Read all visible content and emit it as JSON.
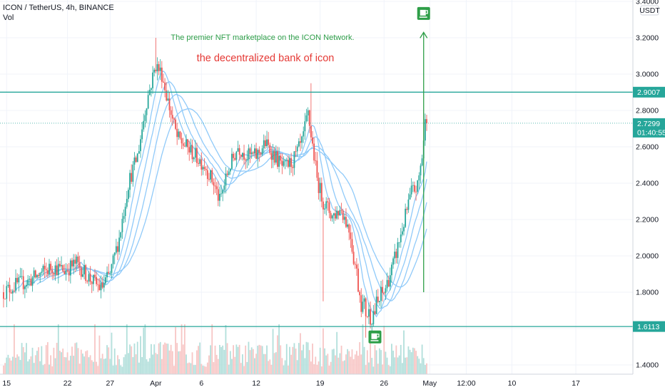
{
  "legend": {
    "symbol_line": "ICON / TetherUS, 4h, BINANCE",
    "volume_label": "Vol"
  },
  "currency_label": "USDT",
  "colors": {
    "up": "#26a69a",
    "down": "#ef5350",
    "volume_up": "#b2dfdb",
    "volume_down": "#f7c6c5",
    "ma": "#90caf9",
    "level_line": "#26a69a",
    "annotation_green": "#2e9e48",
    "annotation_red": "#e53935",
    "axis_text": "#131722"
  },
  "icons": [
    "coffee-cup-icon"
  ],
  "chart_data": {
    "type": "candlestick",
    "title": "",
    "xlabel": "",
    "ylabel": "",
    "ylim": [
      1.37,
      3.4
    ],
    "y_ticks": [
      "3.4000",
      "3.2000",
      "3.0000",
      "2.8000",
      "2.6000",
      "2.4000",
      "2.2000",
      "2.0000",
      "1.8000",
      "1.6000",
      "1.4000"
    ],
    "x_ticks": [
      {
        "label": "15",
        "bar": 2
      },
      {
        "label": "22",
        "bar": 42
      },
      {
        "label": "27",
        "bar": 70
      },
      {
        "label": "Apr",
        "bar": 100
      },
      {
        "label": "6",
        "bar": 130
      },
      {
        "label": "12",
        "bar": 166
      },
      {
        "label": "19",
        "bar": 208
      },
      {
        "label": "26",
        "bar": 250
      },
      {
        "label": "May",
        "bar": 280
      },
      {
        "label": "12:00",
        "bar": 304
      },
      {
        "label": "10",
        "bar": 334
      },
      {
        "label": "17",
        "bar": 376
      }
    ],
    "levels": [
      {
        "name": "resistance",
        "value": 2.9007,
        "label": "2.9007"
      },
      {
        "name": "support",
        "value": 1.6113,
        "label": "1.6113"
      }
    ],
    "last_price": {
      "value": 2.7299,
      "label": "2.7299",
      "countdown": "01:40:55"
    },
    "annotations": [
      {
        "text": "The premier NFT marketplace on the ICON Network.",
        "color": "green"
      },
      {
        "text": "the decentralized bank of icon",
        "color": "red"
      }
    ],
    "arrow": {
      "from_bar": 276,
      "from_price": 1.8,
      "to_price": 3.23
    },
    "markers": [
      {
        "icon": "coffee-cup-icon",
        "bar": 276,
        "price": 3.33
      },
      {
        "icon": "coffee-cup-icon",
        "bar": 244,
        "price": 1.55
      }
    ],
    "anchors": [
      [
        0,
        1.8
      ],
      [
        8,
        1.84
      ],
      [
        16,
        1.86
      ],
      [
        24,
        1.9
      ],
      [
        32,
        1.94
      ],
      [
        40,
        1.92
      ],
      [
        48,
        1.96
      ],
      [
        56,
        1.88
      ],
      [
        64,
        1.82
      ],
      [
        70,
        1.9
      ],
      [
        76,
        2.1
      ],
      [
        82,
        2.4
      ],
      [
        88,
        2.55
      ],
      [
        94,
        2.85
      ],
      [
        100,
        3.05
      ],
      [
        104,
        3.0
      ],
      [
        108,
        2.85
      ],
      [
        114,
        2.65
      ],
      [
        120,
        2.6
      ],
      [
        126,
        2.55
      ],
      [
        132,
        2.5
      ],
      [
        138,
        2.4
      ],
      [
        142,
        2.3
      ],
      [
        148,
        2.48
      ],
      [
        154,
        2.6
      ],
      [
        160,
        2.55
      ],
      [
        166,
        2.55
      ],
      [
        172,
        2.62
      ],
      [
        178,
        2.55
      ],
      [
        184,
        2.48
      ],
      [
        190,
        2.52
      ],
      [
        196,
        2.62
      ],
      [
        200,
        2.78
      ],
      [
        204,
        2.55
      ],
      [
        206,
        2.42
      ],
      [
        210,
        2.3
      ],
      [
        216,
        2.22
      ],
      [
        222,
        2.26
      ],
      [
        228,
        2.12
      ],
      [
        232,
        1.9
      ],
      [
        236,
        1.72
      ],
      [
        240,
        1.68
      ],
      [
        244,
        1.7
      ],
      [
        250,
        1.8
      ],
      [
        256,
        1.95
      ],
      [
        262,
        2.15
      ],
      [
        268,
        2.35
      ],
      [
        272,
        2.38
      ],
      [
        275,
        2.55
      ],
      [
        277,
        2.7299
      ]
    ],
    "volume_range": [
      0,
      1
    ]
  }
}
